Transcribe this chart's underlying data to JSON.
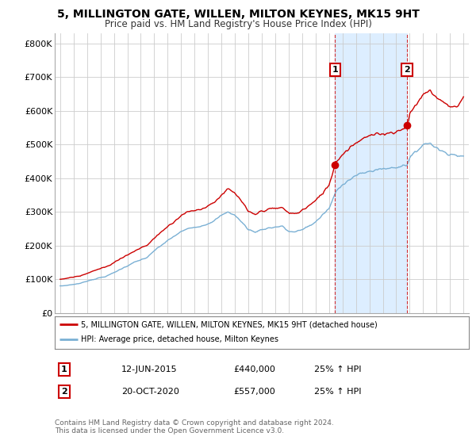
{
  "title": "5, MILLINGTON GATE, WILLEN, MILTON KEYNES, MK15 9HT",
  "subtitle": "Price paid vs. HM Land Registry's House Price Index (HPI)",
  "title_fontsize": 10,
  "subtitle_fontsize": 8.5,
  "ylabel_ticks": [
    "£0",
    "£100K",
    "£200K",
    "£300K",
    "£400K",
    "£500K",
    "£600K",
    "£700K",
    "£800K"
  ],
  "ytick_values": [
    0,
    100000,
    200000,
    300000,
    400000,
    500000,
    600000,
    700000,
    800000
  ],
  "ylim": [
    0,
    830000
  ],
  "sale1_year": 2015.44,
  "sale1_price": 440000,
  "sale1_label": "1",
  "sale2_year": 2020.79,
  "sale2_price": 557000,
  "sale2_label": "2",
  "annotation1_date": "12-JUN-2015",
  "annotation1_price": "£440,000",
  "annotation1_hpi": "25% ↑ HPI",
  "annotation2_date": "20-OCT-2020",
  "annotation2_price": "£557,000",
  "annotation2_hpi": "25% ↑ HPI",
  "legend_label1": "5, MILLINGTON GATE, WILLEN, MILTON KEYNES, MK15 9HT (detached house)",
  "legend_label2": "HPI: Average price, detached house, Milton Keynes",
  "footer1": "Contains HM Land Registry data © Crown copyright and database right 2024.",
  "footer2": "This data is licensed under the Open Government Licence v3.0.",
  "line1_color": "#cc0000",
  "line2_color": "#7ab0d4",
  "vline_color": "#cc0000",
  "shade_color": "#ddeeff",
  "background_color": "#ffffff",
  "grid_color": "#cccccc"
}
